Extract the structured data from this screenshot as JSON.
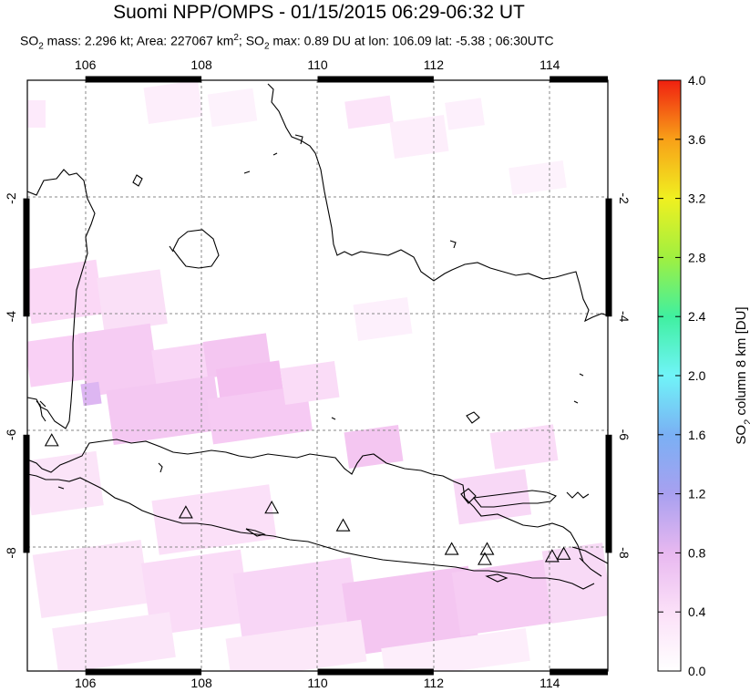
{
  "title": "Suomi NPP/OMPS - 01/15/2015 06:29-06:32 UT",
  "subtitle": {
    "so2_label": "SO",
    "sub2": "2",
    "mass": " mass: 2.296 kt; Area: 227067 km",
    "sup2": "2",
    "max_prefix": "; SO",
    "max_sub": "2",
    "max_rest": " max: 0.89 DU at lon: 106.09 lat: -5.38 ; 06:30UTC"
  },
  "map": {
    "lon_range": [
      105,
      115
    ],
    "lat_range": [
      -10,
      0
    ],
    "lon_ticks": [
      "106",
      "108",
      "110",
      "112",
      "114"
    ],
    "lat_ticks": [
      "-2",
      "-4",
      "-6",
      "-8"
    ],
    "volcano_markers": [
      {
        "lon": 105.42,
        "lat": -6.1
      },
      {
        "lon": 107.73,
        "lat": -7.32
      },
      {
        "lon": 109.21,
        "lat": -7.24
      },
      {
        "lon": 110.44,
        "lat": -7.54
      },
      {
        "lon": 112.31,
        "lat": -7.94
      },
      {
        "lon": 112.92,
        "lat": -7.94
      },
      {
        "lon": 112.88,
        "lat": -8.11
      },
      {
        "lon": 114.04,
        "lat": -8.06
      },
      {
        "lon": 114.24,
        "lat": -8.02
      }
    ]
  },
  "colorbar": {
    "label_prefix": "SO",
    "label_sub": "2",
    "label_rest": " column 8 km [DU]",
    "ticks": [
      "0.0",
      "0.4",
      "0.8",
      "1.2",
      "1.6",
      "2.0",
      "2.4",
      "2.8",
      "3.2",
      "3.6",
      "4.0"
    ],
    "range": [
      0,
      4
    ],
    "colors": [
      "#ffffff",
      "#f7c8f2",
      "#c8a2f0",
      "#7a9cf0",
      "#5ce8f8",
      "#3cf07c",
      "#d8f020",
      "#f8c818",
      "#f87a10",
      "#f01c10"
    ]
  }
}
